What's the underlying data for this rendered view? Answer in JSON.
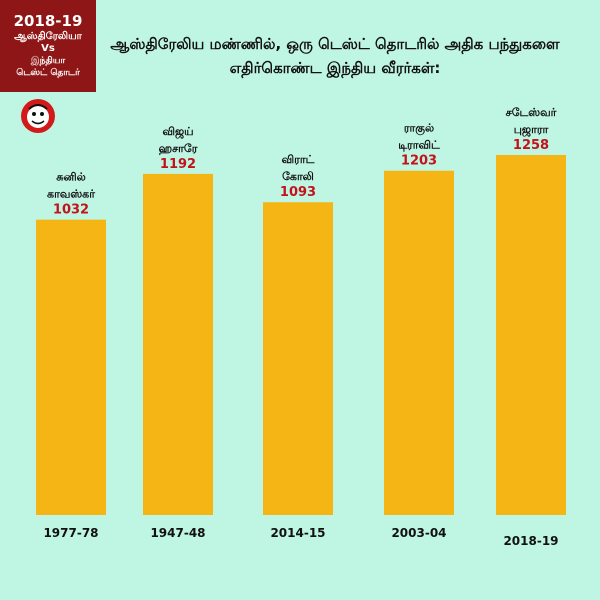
{
  "badge": {
    "year": "2018-19",
    "team1": "ஆஸ்திரேலியா",
    "vs": "Vs",
    "team2": "இந்தியா",
    "series": "டெஸ்ட் தொடர்"
  },
  "colors": {
    "bar": "#f5b514",
    "value_text": "#c4121a",
    "background": "#bff5e3",
    "badge": "#8e1616"
  },
  "logo": {
    "icon": "cartoon-mascot-icon"
  },
  "chart_data": {
    "type": "bar",
    "title": "ஆஸ்திரேலிய மண்ணில், ஒரு டெஸ்ட் தொடரில் அதிக பந்துகளை எதிர்கொண்ட இந்திய வீரர்கள்:",
    "players": [
      [
        "சுனில்",
        "காவஸ்கர்"
      ],
      [
        "விஜய்",
        "ஹசாரே"
      ],
      [
        "விராட்",
        "கோலி"
      ],
      [
        "ராகுல்",
        "டிராவிட்"
      ],
      [
        "சடேஸ்வர்",
        "புஜாரா"
      ]
    ],
    "categories": [
      "1977-78",
      "1947-48",
      "2014-15",
      "2003-04",
      "2018-19"
    ],
    "values": [
      1032,
      1192,
      1093,
      1203,
      1258
    ],
    "value_labels": [
      "1032",
      "1192",
      "1093",
      "1203",
      "1258"
    ],
    "xlabel": "",
    "ylabel": "",
    "ylim": [
      0,
      1258
    ],
    "grid": false
  }
}
